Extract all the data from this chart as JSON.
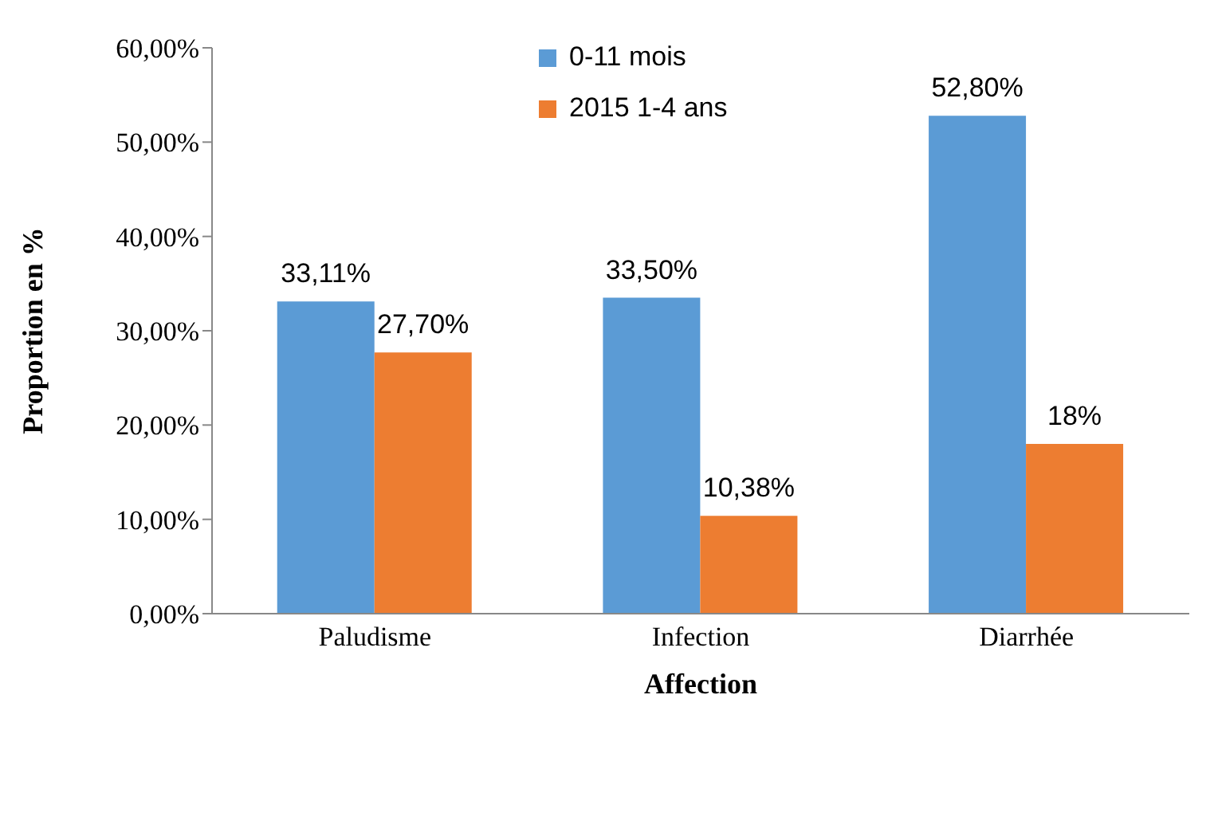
{
  "chart_data": {
    "type": "bar",
    "xlabel": "Affection",
    "ylabel": "Proportion en %",
    "categories": [
      "Paludisme",
      "Infection",
      "Diarrhée"
    ],
    "series": [
      {
        "name": "0-11 mois",
        "color": "#5b9bd5",
        "values": [
          33.11,
          33.5,
          52.8
        ],
        "value_labels": [
          "33,11%",
          "33,50%",
          "52,80%"
        ]
      },
      {
        "name": "2015 1-4 ans",
        "color": "#ed7d31",
        "values": [
          27.7,
          10.38,
          18
        ],
        "value_labels": [
          "27,70%",
          "10,38%",
          "18%"
        ]
      }
    ],
    "ylim": [
      0,
      60
    ],
    "yticks": [
      {
        "value": 0,
        "label": "0,00%"
      },
      {
        "value": 10,
        "label": "10,00%"
      },
      {
        "value": 20,
        "label": "20,00%"
      },
      {
        "value": 30,
        "label": "30,00%"
      },
      {
        "value": 40,
        "label": "40,00%"
      },
      {
        "value": 50,
        "label": "50,00%"
      },
      {
        "value": 60,
        "label": "60,00%"
      }
    ],
    "grid": false,
    "legend": "top"
  }
}
